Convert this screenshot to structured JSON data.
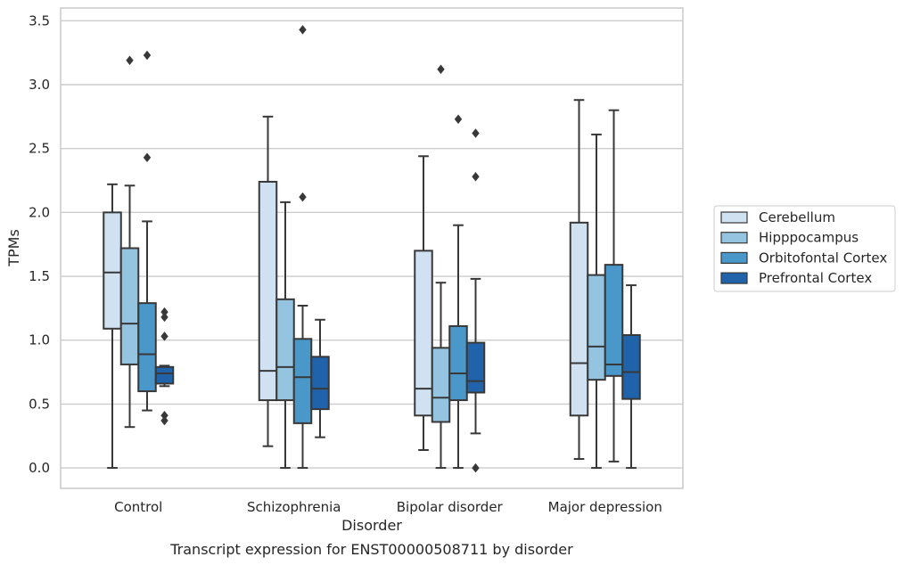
{
  "chart_data": {
    "type": "boxplot",
    "caption": "Transcript expression for ENST00000508711 by disorder",
    "xlabel": "Disorder",
    "ylabel": "TPMs",
    "ylim": [
      -0.16,
      3.6
    ],
    "yticks": [
      "0.0",
      "0.5",
      "1.0",
      "1.5",
      "2.0",
      "2.5",
      "3.0",
      "3.5"
    ],
    "ytick_values": [
      0,
      0.5,
      1.0,
      1.5,
      2.0,
      2.5,
      3.0,
      3.5
    ],
    "grid": true,
    "legend_position": "right",
    "categories": [
      "Control",
      "Schizophrenia",
      "Bipolar disorder",
      "Major depression"
    ],
    "series": [
      {
        "name": "Cerebellum",
        "color": "#d0e1f2",
        "boxes": [
          {
            "whisker_low": 0.0,
            "q1": 1.09,
            "median": 1.53,
            "q3": 2.0,
            "whisker_high": 2.22,
            "outliers": []
          },
          {
            "whisker_low": 0.17,
            "q1": 0.53,
            "median": 0.76,
            "q3": 2.24,
            "whisker_high": 2.75,
            "outliers": []
          },
          {
            "whisker_low": 0.14,
            "q1": 0.41,
            "median": 0.62,
            "q3": 1.7,
            "whisker_high": 2.44,
            "outliers": []
          },
          {
            "whisker_low": 0.07,
            "q1": 0.41,
            "median": 0.82,
            "q3": 1.92,
            "whisker_high": 2.88,
            "outliers": []
          }
        ]
      },
      {
        "name": "Hipppocampus",
        "color": "#94c4df",
        "boxes": [
          {
            "whisker_low": 0.32,
            "q1": 0.81,
            "median": 1.13,
            "q3": 1.72,
            "whisker_high": 2.21,
            "outliers": [
              3.19
            ]
          },
          {
            "whisker_low": 0.0,
            "q1": 0.53,
            "median": 0.79,
            "q3": 1.32,
            "whisker_high": 2.08,
            "outliers": []
          },
          {
            "whisker_low": 0.0,
            "q1": 0.36,
            "median": 0.55,
            "q3": 0.94,
            "whisker_high": 1.45,
            "outliers": [
              3.12
            ]
          },
          {
            "whisker_low": 0.0,
            "q1": 0.69,
            "median": 0.95,
            "q3": 1.51,
            "whisker_high": 2.61,
            "outliers": []
          }
        ]
      },
      {
        "name": "Orbitofontal Cortex",
        "color": "#4a98c9",
        "boxes": [
          {
            "whisker_low": 0.45,
            "q1": 0.6,
            "median": 0.89,
            "q3": 1.29,
            "whisker_high": 1.93,
            "outliers": [
              3.23,
              2.43
            ]
          },
          {
            "whisker_low": 0.0,
            "q1": 0.35,
            "median": 0.71,
            "q3": 1.01,
            "whisker_high": 1.27,
            "outliers": [
              3.43,
              2.12
            ]
          },
          {
            "whisker_low": 0.0,
            "q1": 0.53,
            "median": 0.74,
            "q3": 1.11,
            "whisker_high": 1.9,
            "outliers": [
              2.73
            ]
          },
          {
            "whisker_low": 0.05,
            "q1": 0.72,
            "median": 0.81,
            "q3": 1.59,
            "whisker_high": 2.8,
            "outliers": []
          }
        ]
      },
      {
        "name": "Prefrontal Cortex",
        "color": "#2163aa",
        "boxes": [
          {
            "whisker_low": 0.64,
            "q1": 0.66,
            "median": 0.74,
            "q3": 0.79,
            "whisker_high": 0.8,
            "outliers": [
              1.22,
              1.18,
              1.03,
              0.41,
              0.37
            ]
          },
          {
            "whisker_low": 0.24,
            "q1": 0.46,
            "median": 0.62,
            "q3": 0.87,
            "whisker_high": 1.16,
            "outliers": []
          },
          {
            "whisker_low": 0.27,
            "q1": 0.59,
            "median": 0.68,
            "q3": 0.98,
            "whisker_high": 1.48,
            "outliers": [
              2.62,
              2.28,
              0.0
            ]
          },
          {
            "whisker_low": 0.0,
            "q1": 0.54,
            "median": 0.75,
            "q3": 1.04,
            "whisker_high": 1.43,
            "outliers": []
          }
        ]
      }
    ]
  }
}
